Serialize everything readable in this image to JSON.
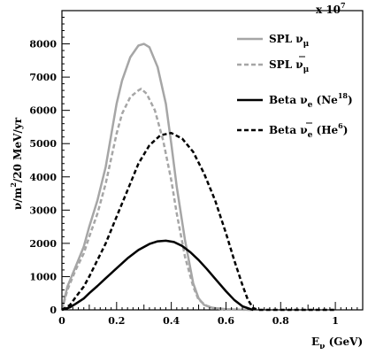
{
  "chart_data": {
    "type": "line",
    "xlabel": {
      "main": "E",
      "sub": "ν",
      "unit": " (GeV)"
    },
    "ylabel": {
      "pre": "ν/m",
      "sup": "2",
      "post": "/20 MeV/yr"
    },
    "multiplier": {
      "base": "x 10",
      "exp": "7"
    },
    "xlim": [
      0,
      1.1
    ],
    "ylim": [
      0,
      9000
    ],
    "xticks": [
      0,
      0.2,
      0.4,
      0.6,
      0.8,
      1
    ],
    "xtick_labels": [
      "0",
      "0.2",
      "0.4",
      "0.6",
      "0.8",
      "1"
    ],
    "yticks": [
      0,
      1000,
      2000,
      3000,
      4000,
      5000,
      6000,
      7000,
      8000
    ],
    "ytick_labels": [
      "0",
      "1000",
      "2000",
      "3000",
      "4000",
      "5000",
      "6000",
      "7000",
      "8000"
    ],
    "grid": false,
    "legend_position": "top-right",
    "series": [
      {
        "name": "SPL ν_μ",
        "legend": {
          "pre": "SPL ν",
          "sub": "μ",
          "post": "",
          "bar": false
        },
        "color": "#a6a6a6",
        "dash": "solid",
        "x": [
          0,
          0.02,
          0.05,
          0.08,
          0.1,
          0.13,
          0.16,
          0.2,
          0.22,
          0.25,
          0.28,
          0.3,
          0.32,
          0.35,
          0.38,
          0.4,
          0.42,
          0.45,
          0.48,
          0.5,
          0.52,
          0.55,
          0.6,
          0.65,
          0.7
        ],
        "y": [
          0,
          700,
          1300,
          1900,
          2500,
          3300,
          4300,
          6200,
          6900,
          7600,
          7950,
          8000,
          7900,
          7300,
          6200,
          5000,
          3700,
          2100,
          800,
          350,
          150,
          60,
          20,
          5,
          0
        ]
      },
      {
        "name": "SPL anti-ν_μ",
        "legend": {
          "pre": "SPL ν",
          "sub": "μ",
          "post": "",
          "bar": true
        },
        "color": "#a6a6a6",
        "dash": "dashed",
        "x": [
          0,
          0.02,
          0.05,
          0.08,
          0.1,
          0.13,
          0.16,
          0.2,
          0.22,
          0.25,
          0.28,
          0.29,
          0.31,
          0.34,
          0.37,
          0.4,
          0.42,
          0.45,
          0.48,
          0.5,
          0.53,
          0.56,
          0.6,
          0.7
        ],
        "y": [
          0,
          600,
          1200,
          1700,
          2200,
          2900,
          3800,
          5300,
          5900,
          6400,
          6600,
          6650,
          6500,
          6000,
          5100,
          3900,
          2900,
          1600,
          700,
          300,
          120,
          40,
          10,
          0
        ]
      },
      {
        "name": "Beta ν_e (Ne18)",
        "legend": {
          "pre": "Beta ν",
          "sub": "e",
          "post": " (Ne",
          "sup": "18",
          "close": ")",
          "bar": false
        },
        "color": "#000000",
        "dash": "solid",
        "x": [
          0,
          0.03,
          0.05,
          0.08,
          0.1,
          0.13,
          0.16,
          0.2,
          0.24,
          0.28,
          0.32,
          0.35,
          0.38,
          0.41,
          0.44,
          0.47,
          0.5,
          0.53,
          0.56,
          0.6,
          0.63,
          0.66,
          0.69,
          0.7
        ],
        "y": [
          0,
          80,
          180,
          340,
          500,
          720,
          950,
          1250,
          1550,
          1800,
          1980,
          2060,
          2080,
          2040,
          1920,
          1730,
          1500,
          1230,
          940,
          560,
          300,
          110,
          20,
          0
        ]
      },
      {
        "name": "Beta anti-ν_e (He6)",
        "legend": {
          "pre": "Beta ν",
          "sub": "e",
          "post": " (He",
          "sup": "6",
          "close": ")",
          "bar": true
        },
        "color": "#000000",
        "dash": "dashed",
        "x": [
          0,
          0.03,
          0.05,
          0.08,
          0.1,
          0.13,
          0.16,
          0.2,
          0.24,
          0.28,
          0.32,
          0.36,
          0.4,
          0.44,
          0.48,
          0.52,
          0.56,
          0.6,
          0.63,
          0.66,
          0.68,
          0.7,
          0.72,
          1.0
        ],
        "y": [
          0,
          150,
          380,
          700,
          1000,
          1500,
          2000,
          2800,
          3600,
          4400,
          4950,
          5250,
          5320,
          5150,
          4750,
          4100,
          3300,
          2300,
          1500,
          750,
          300,
          50,
          0,
          0
        ]
      }
    ]
  }
}
